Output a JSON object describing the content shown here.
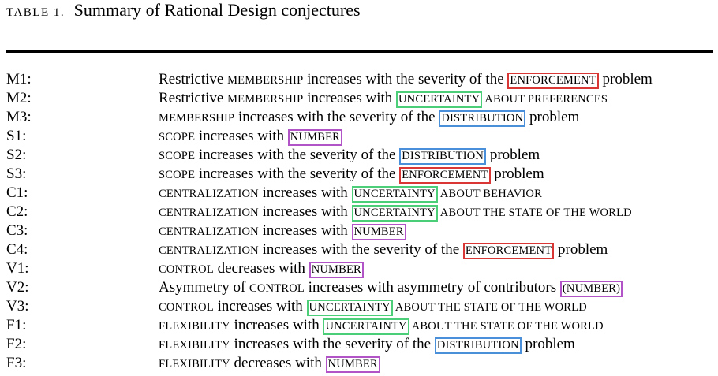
{
  "header": {
    "table_label": "Table 1.",
    "title": "Summary of Rational Design conjectures"
  },
  "colors": {
    "enforcement": "#d93636",
    "uncertainty": "#4cce78",
    "distribution": "#4a8fd9",
    "number": "#b154c8"
  },
  "rows": [
    {
      "id": "M1:",
      "parts": [
        [
          "c",
          "Restrictive "
        ],
        [
          "s",
          "membership"
        ],
        [
          "c",
          " increases with the severity of the "
        ],
        [
          "r",
          "enforcement"
        ],
        [
          "c",
          " problem"
        ]
      ]
    },
    {
      "id": "M2:",
      "parts": [
        [
          "c",
          "Restrictive "
        ],
        [
          "s",
          "membership"
        ],
        [
          "c",
          " increases with "
        ],
        [
          "g",
          "uncertainty"
        ],
        [
          "s",
          " about preferences"
        ]
      ]
    },
    {
      "id": "M3:",
      "parts": [
        [
          "s",
          "membership"
        ],
        [
          "c",
          " increases with the severity of the "
        ],
        [
          "b",
          "distribution"
        ],
        [
          "c",
          " problem"
        ]
      ]
    },
    {
      "id": "S1:",
      "parts": [
        [
          "s",
          "scope"
        ],
        [
          "c",
          " increases with "
        ],
        [
          "p",
          "number"
        ]
      ]
    },
    {
      "id": "S2:",
      "parts": [
        [
          "s",
          "scope"
        ],
        [
          "c",
          " increases with the severity of the "
        ],
        [
          "b",
          "distribution"
        ],
        [
          "c",
          " problem"
        ]
      ]
    },
    {
      "id": "S3:",
      "parts": [
        [
          "s",
          "scope"
        ],
        [
          "c",
          " increases with the severity of the "
        ],
        [
          "r",
          "enforcement"
        ],
        [
          "c",
          " problem"
        ]
      ]
    },
    {
      "id": "C1:",
      "parts": [
        [
          "s",
          "centralization"
        ],
        [
          "c",
          " increases with "
        ],
        [
          "g",
          "uncertainty"
        ],
        [
          "s",
          " about behavior"
        ]
      ]
    },
    {
      "id": "C2:",
      "parts": [
        [
          "s",
          "centralization"
        ],
        [
          "c",
          " increases with "
        ],
        [
          "g",
          "uncertainty"
        ],
        [
          "s",
          " about the state of the world"
        ]
      ]
    },
    {
      "id": "C3:",
      "parts": [
        [
          "s",
          "centralization"
        ],
        [
          "c",
          " increases with "
        ],
        [
          "p",
          "number"
        ]
      ]
    },
    {
      "id": "C4:",
      "parts": [
        [
          "s",
          "centralization"
        ],
        [
          "c",
          " increases with the severity of the "
        ],
        [
          "r",
          "enforcement"
        ],
        [
          "c",
          " problem"
        ]
      ]
    },
    {
      "id": "V1:",
      "parts": [
        [
          "s",
          "control"
        ],
        [
          "c",
          " decreases with "
        ],
        [
          "p",
          "number"
        ]
      ]
    },
    {
      "id": "V2:",
      "parts": [
        [
          "c",
          "Asymmetry of "
        ],
        [
          "s",
          "control"
        ],
        [
          "c",
          " increases with asymmetry of contributors "
        ],
        [
          "p",
          "(number)"
        ]
      ]
    },
    {
      "id": "V3:",
      "parts": [
        [
          "s",
          "control"
        ],
        [
          "c",
          " increases with "
        ],
        [
          "g",
          "uncertainty"
        ],
        [
          "s",
          " about the state of the world"
        ]
      ]
    },
    {
      "id": "F1:",
      "parts": [
        [
          "s",
          "flexibility"
        ],
        [
          "c",
          " increases with "
        ],
        [
          "g",
          "uncertainty"
        ],
        [
          "s",
          " about the state of the world"
        ]
      ]
    },
    {
      "id": "F2:",
      "parts": [
        [
          "s",
          "flexibility"
        ],
        [
          "c",
          " increases with the severity of the "
        ],
        [
          "b",
          "distribution"
        ],
        [
          "c",
          " problem"
        ]
      ]
    },
    {
      "id": "F3:",
      "parts": [
        [
          "s",
          "flexibility"
        ],
        [
          "c",
          " decreases with "
        ],
        [
          "p",
          "number"
        ]
      ]
    }
  ]
}
